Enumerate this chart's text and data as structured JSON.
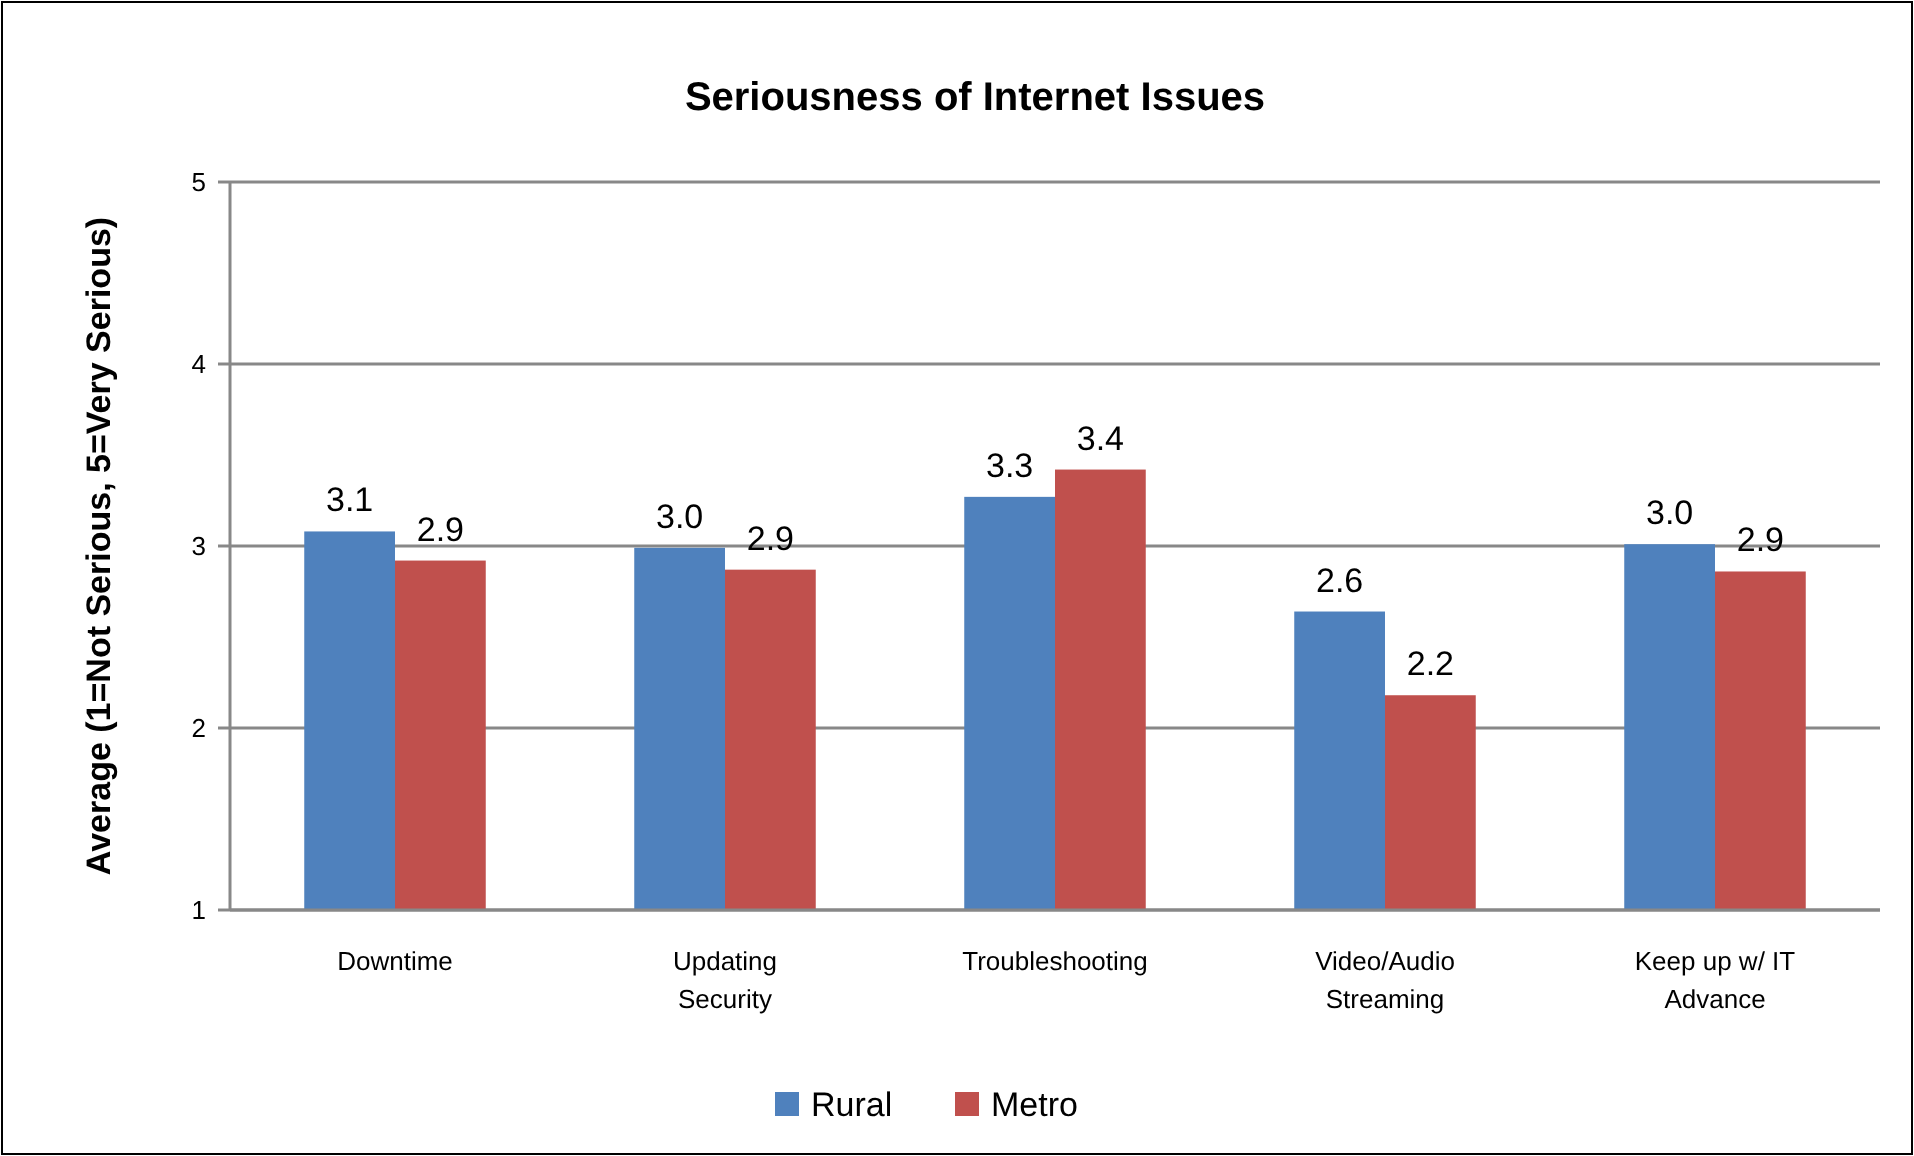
{
  "chart_data": {
    "type": "bar",
    "title": "Seriousness of Internet Issues",
    "ylabel": "Average (1=Not Serious, 5=Very Serious)",
    "categories": [
      "Downtime",
      "Updating Security",
      "Troubleshooting",
      "Video/Audio Streaming",
      "Keep up w/ IT Advance"
    ],
    "series": [
      {
        "name": "Rural",
        "color": "#4f81bd",
        "values": [
          3.08,
          2.99,
          3.27,
          2.64,
          3.01
        ],
        "value_labels": [
          "3.1",
          "3.0",
          "3.3",
          "2.6",
          "3.0"
        ]
      },
      {
        "name": "Metro",
        "color": "#c0504d",
        "values": [
          2.92,
          2.87,
          3.42,
          2.18,
          2.86
        ],
        "value_labels": [
          "2.9",
          "2.9",
          "3.4",
          "2.2",
          "2.9"
        ]
      }
    ],
    "ylim": [
      1,
      5
    ],
    "yticks": [
      1,
      2,
      3,
      4,
      5
    ],
    "grid": "y",
    "legend": "bottom"
  }
}
